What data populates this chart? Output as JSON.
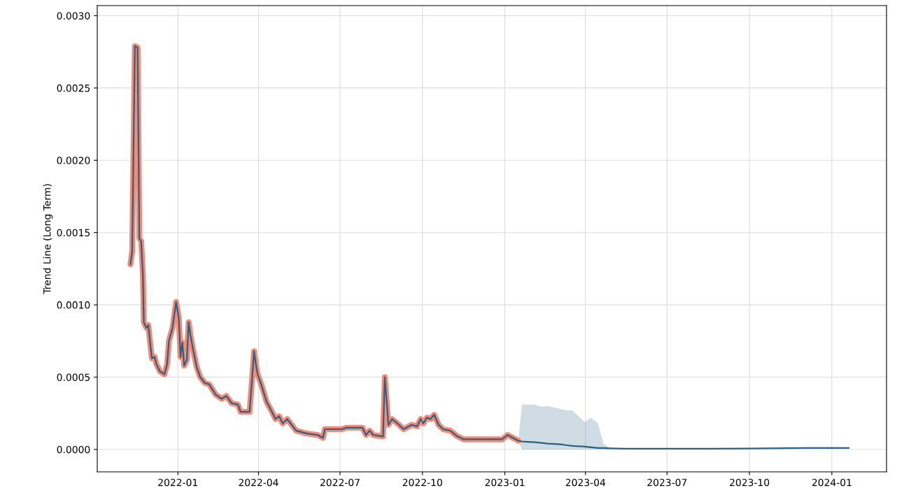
{
  "chart_data": {
    "type": "line",
    "ylabel": "Trend Line (Long Term)",
    "xlim": [
      "2021-10-03",
      "2024-03-02"
    ],
    "ylim": [
      -0.000155,
      0.00307
    ],
    "xticks": [
      {
        "value": "2022-01-01",
        "label": "2022-01"
      },
      {
        "value": "2022-04-01",
        "label": "2022-04"
      },
      {
        "value": "2022-07-01",
        "label": "2022-07"
      },
      {
        "value": "2022-10-01",
        "label": "2022-10"
      },
      {
        "value": "2023-01-01",
        "label": "2023-01"
      },
      {
        "value": "2023-04-01",
        "label": "2023-04"
      },
      {
        "value": "2023-07-01",
        "label": "2023-07"
      },
      {
        "value": "2023-10-01",
        "label": "2023-10"
      },
      {
        "value": "2024-01-01",
        "label": "2024-01"
      }
    ],
    "yticks": [
      {
        "value": 0,
        "label": "0.0000"
      },
      {
        "value": 0.0005,
        "label": "0.0005"
      },
      {
        "value": 0.001,
        "label": "0.0010"
      },
      {
        "value": 0.0015,
        "label": "0.0015"
      },
      {
        "value": 0.002,
        "label": "0.0020"
      },
      {
        "value": 0.0025,
        "label": "0.0025"
      },
      {
        "value": 0.003,
        "label": "0.0030"
      }
    ],
    "grid": true,
    "series": [
      {
        "color": "#f58b77",
        "x": [
          "2021-11-09",
          "2021-11-11",
          "2021-11-14",
          "2021-11-17",
          "2021-11-19",
          "2021-11-21",
          "2021-11-23",
          "2021-11-24",
          "2021-11-27",
          "2021-11-29",
          "2021-12-01",
          "2021-12-03",
          "2021-12-06",
          "2021-12-08",
          "2021-12-12",
          "2021-12-17",
          "2021-12-20",
          "2021-12-22",
          "2021-12-26",
          "2021-12-30",
          "2022-01-02",
          "2022-01-04",
          "2022-01-06",
          "2022-01-08",
          "2022-01-11",
          "2022-01-13",
          "2022-01-15",
          "2022-01-18",
          "2022-01-22",
          "2022-01-26",
          "2022-01-31",
          "2022-02-05",
          "2022-02-12",
          "2022-02-19",
          "2022-02-24",
          "2022-03-02",
          "2022-03-09",
          "2022-03-12",
          "2022-03-22",
          "2022-03-25",
          "2022-03-27",
          "2022-03-29",
          "2022-03-31",
          "2022-04-04",
          "2022-04-10",
          "2022-04-16",
          "2022-04-20",
          "2022-04-24",
          "2022-04-28",
          "2022-05-03",
          "2022-05-08",
          "2022-05-13",
          "2022-05-25",
          "2022-06-06",
          "2022-06-12",
          "2022-06-14",
          "2022-06-25",
          "2022-07-03",
          "2022-07-08",
          "2022-07-26",
          "2022-07-30",
          "2022-08-03",
          "2022-08-07",
          "2022-08-18",
          "2022-08-20",
          "2022-08-24",
          "2022-08-28",
          "2022-09-03",
          "2022-09-10",
          "2022-09-19",
          "2022-09-25",
          "2022-09-29",
          "2022-10-02",
          "2022-10-06",
          "2022-10-10",
          "2022-10-14",
          "2022-10-19",
          "2022-10-24",
          "2022-11-01",
          "2022-11-09",
          "2022-11-16",
          "2022-12-06",
          "2022-12-29",
          "2023-01-04",
          "2023-01-10",
          "2023-01-16"
        ],
        "values": [
          0.00128,
          0.00137,
          0.00279,
          0.00278,
          0.00146,
          0.00144,
          0.0012,
          0.00088,
          0.00084,
          0.00086,
          0.00074,
          0.00063,
          0.00064,
          0.00059,
          0.00054,
          0.00052,
          0.00059,
          0.00075,
          0.00084,
          0.00102,
          0.00091,
          0.00064,
          0.00074,
          0.00058,
          0.00062,
          0.00088,
          0.00079,
          0.00069,
          0.00057,
          0.0005,
          0.00046,
          0.00045,
          0.00038,
          0.00035,
          0.00037,
          0.00032,
          0.00031,
          0.00026,
          0.00026,
          0.0005,
          0.00068,
          0.00059,
          0.00052,
          0.00045,
          0.00033,
          0.00026,
          0.00021,
          0.00023,
          0.00018,
          0.00021,
          0.00017,
          0.00013,
          0.00011,
          0.0001,
          8e-05,
          0.00014,
          0.00014,
          0.00014,
          0.00015,
          0.00015,
          0.0001,
          0.00013,
          0.0001,
          9e-05,
          0.0005,
          0.00017,
          0.00021,
          0.00018,
          0.00014,
          0.00017,
          0.00016,
          0.00021,
          0.00018,
          0.00022,
          0.00021,
          0.00024,
          0.00017,
          0.00014,
          0.00013,
          9e-05,
          7e-05,
          7e-05,
          7e-05,
          0.0001,
          8e-05,
          6e-05
        ]
      },
      {
        "color": "#2b6183",
        "x": [
          "2021-11-09",
          "2021-11-11",
          "2021-11-14",
          "2021-11-17",
          "2021-11-19",
          "2021-11-21",
          "2021-11-23",
          "2021-11-24",
          "2021-11-27",
          "2021-11-29",
          "2021-12-01",
          "2021-12-03",
          "2021-12-06",
          "2021-12-08",
          "2021-12-12",
          "2021-12-17",
          "2021-12-20",
          "2021-12-22",
          "2021-12-26",
          "2021-12-30",
          "2022-01-02",
          "2022-01-04",
          "2022-01-06",
          "2022-01-08",
          "2022-01-11",
          "2022-01-13",
          "2022-01-15",
          "2022-01-18",
          "2022-01-22",
          "2022-01-26",
          "2022-01-31",
          "2022-02-05",
          "2022-02-12",
          "2022-02-19",
          "2022-02-24",
          "2022-03-02",
          "2022-03-09",
          "2022-03-12",
          "2022-03-22",
          "2022-03-25",
          "2022-03-27",
          "2022-03-29",
          "2022-03-31",
          "2022-04-04",
          "2022-04-10",
          "2022-04-16",
          "2022-04-20",
          "2022-04-24",
          "2022-04-28",
          "2022-05-03",
          "2022-05-08",
          "2022-05-13",
          "2022-05-25",
          "2022-06-06",
          "2022-06-12",
          "2022-06-14",
          "2022-06-25",
          "2022-07-03",
          "2022-07-08",
          "2022-07-26",
          "2022-07-30",
          "2022-08-03",
          "2022-08-07",
          "2022-08-18",
          "2022-08-20",
          "2022-08-24",
          "2022-08-28",
          "2022-09-03",
          "2022-09-10",
          "2022-09-19",
          "2022-09-25",
          "2022-09-29",
          "2022-10-02",
          "2022-10-06",
          "2022-10-10",
          "2022-10-14",
          "2022-10-19",
          "2022-10-24",
          "2022-11-01",
          "2022-11-09",
          "2022-11-16",
          "2022-12-06",
          "2022-12-29",
          "2023-01-04",
          "2023-01-10",
          "2023-01-16",
          "2023-01-20",
          "2023-02-03",
          "2023-02-11",
          "2023-02-18",
          "2023-03-04",
          "2023-03-10",
          "2023-03-17",
          "2023-03-31",
          "2023-04-07",
          "2023-04-15",
          "2023-04-21",
          "2023-04-28",
          "2023-05-15",
          "2023-07-01",
          "2023-10-01",
          "2023-12-01",
          "2024-01-20"
        ],
        "values": [
          0.00128,
          0.00137,
          0.00279,
          0.00278,
          0.00146,
          0.00144,
          0.0012,
          0.00088,
          0.00084,
          0.00086,
          0.00074,
          0.00063,
          0.00064,
          0.00059,
          0.00054,
          0.00052,
          0.00059,
          0.00075,
          0.00084,
          0.00102,
          0.00091,
          0.00064,
          0.00074,
          0.00058,
          0.00062,
          0.00088,
          0.00079,
          0.00069,
          0.00057,
          0.0005,
          0.00046,
          0.00045,
          0.00038,
          0.00035,
          0.00037,
          0.00032,
          0.00031,
          0.00026,
          0.00026,
          0.0005,
          0.00068,
          0.00059,
          0.00052,
          0.00045,
          0.00033,
          0.00026,
          0.00021,
          0.00023,
          0.00018,
          0.00021,
          0.00017,
          0.00013,
          0.00011,
          0.0001,
          8e-05,
          0.00014,
          0.00014,
          0.00014,
          0.00015,
          0.00015,
          0.0001,
          0.00013,
          0.0001,
          9e-05,
          0.0005,
          0.00017,
          0.00021,
          0.00018,
          0.00014,
          0.00017,
          0.00016,
          0.00021,
          0.00018,
          0.00022,
          0.00021,
          0.00024,
          0.00017,
          0.00014,
          0.00013,
          9e-05,
          7e-05,
          7e-05,
          7e-05,
          0.0001,
          8e-05,
          6e-05,
          5.5e-05,
          5e-05,
          4.5e-05,
          4e-05,
          3.5e-05,
          3e-05,
          2.5e-05,
          2e-05,
          1.5e-05,
          1e-05,
          1e-05,
          8e-06,
          5e-06,
          5e-06,
          6e-06,
          1e-05,
          1e-05
        ],
        "lower": [
          null,
          null,
          null,
          null,
          null,
          null,
          null,
          null,
          null,
          null,
          null,
          null,
          null,
          null,
          null,
          null,
          null,
          null,
          null,
          null,
          null,
          null,
          null,
          null,
          null,
          null,
          null,
          null,
          null,
          null,
          null,
          null,
          null,
          null,
          null,
          null,
          null,
          null,
          null,
          null,
          null,
          null,
          null,
          null,
          null,
          null,
          null,
          null,
          null,
          null,
          null,
          null,
          null,
          null,
          null,
          null,
          null,
          null,
          null,
          null,
          null,
          null,
          null,
          null,
          null,
          null,
          null,
          null,
          null,
          null,
          null,
          null,
          null,
          null,
          null,
          null,
          null,
          null,
          null,
          null,
          null,
          null,
          null,
          null,
          null,
          6e-05,
          0,
          0,
          0,
          0,
          0,
          0,
          0,
          0,
          0,
          0,
          0,
          0,
          null,
          null,
          null,
          null,
          null
        ],
        "upper": [
          null,
          null,
          null,
          null,
          null,
          null,
          null,
          null,
          null,
          null,
          null,
          null,
          null,
          null,
          null,
          null,
          null,
          null,
          null,
          null,
          null,
          null,
          null,
          null,
          null,
          null,
          null,
          null,
          null,
          null,
          null,
          null,
          null,
          null,
          null,
          null,
          null,
          null,
          null,
          null,
          null,
          null,
          null,
          null,
          null,
          null,
          null,
          null,
          null,
          null,
          null,
          null,
          null,
          null,
          null,
          null,
          null,
          null,
          null,
          null,
          null,
          null,
          null,
          null,
          null,
          null,
          null,
          null,
          null,
          null,
          null,
          null,
          null,
          null,
          null,
          null,
          null,
          null,
          null,
          null,
          null,
          null,
          null,
          null,
          null,
          6e-05,
          0.00031,
          0.00031,
          0.000295,
          0.0003,
          0.00028,
          0.00027,
          0.00027,
          0.00019,
          0.00022,
          0.00018,
          4e-05,
          1e-05,
          null,
          null,
          null,
          null,
          null
        ]
      }
    ]
  }
}
